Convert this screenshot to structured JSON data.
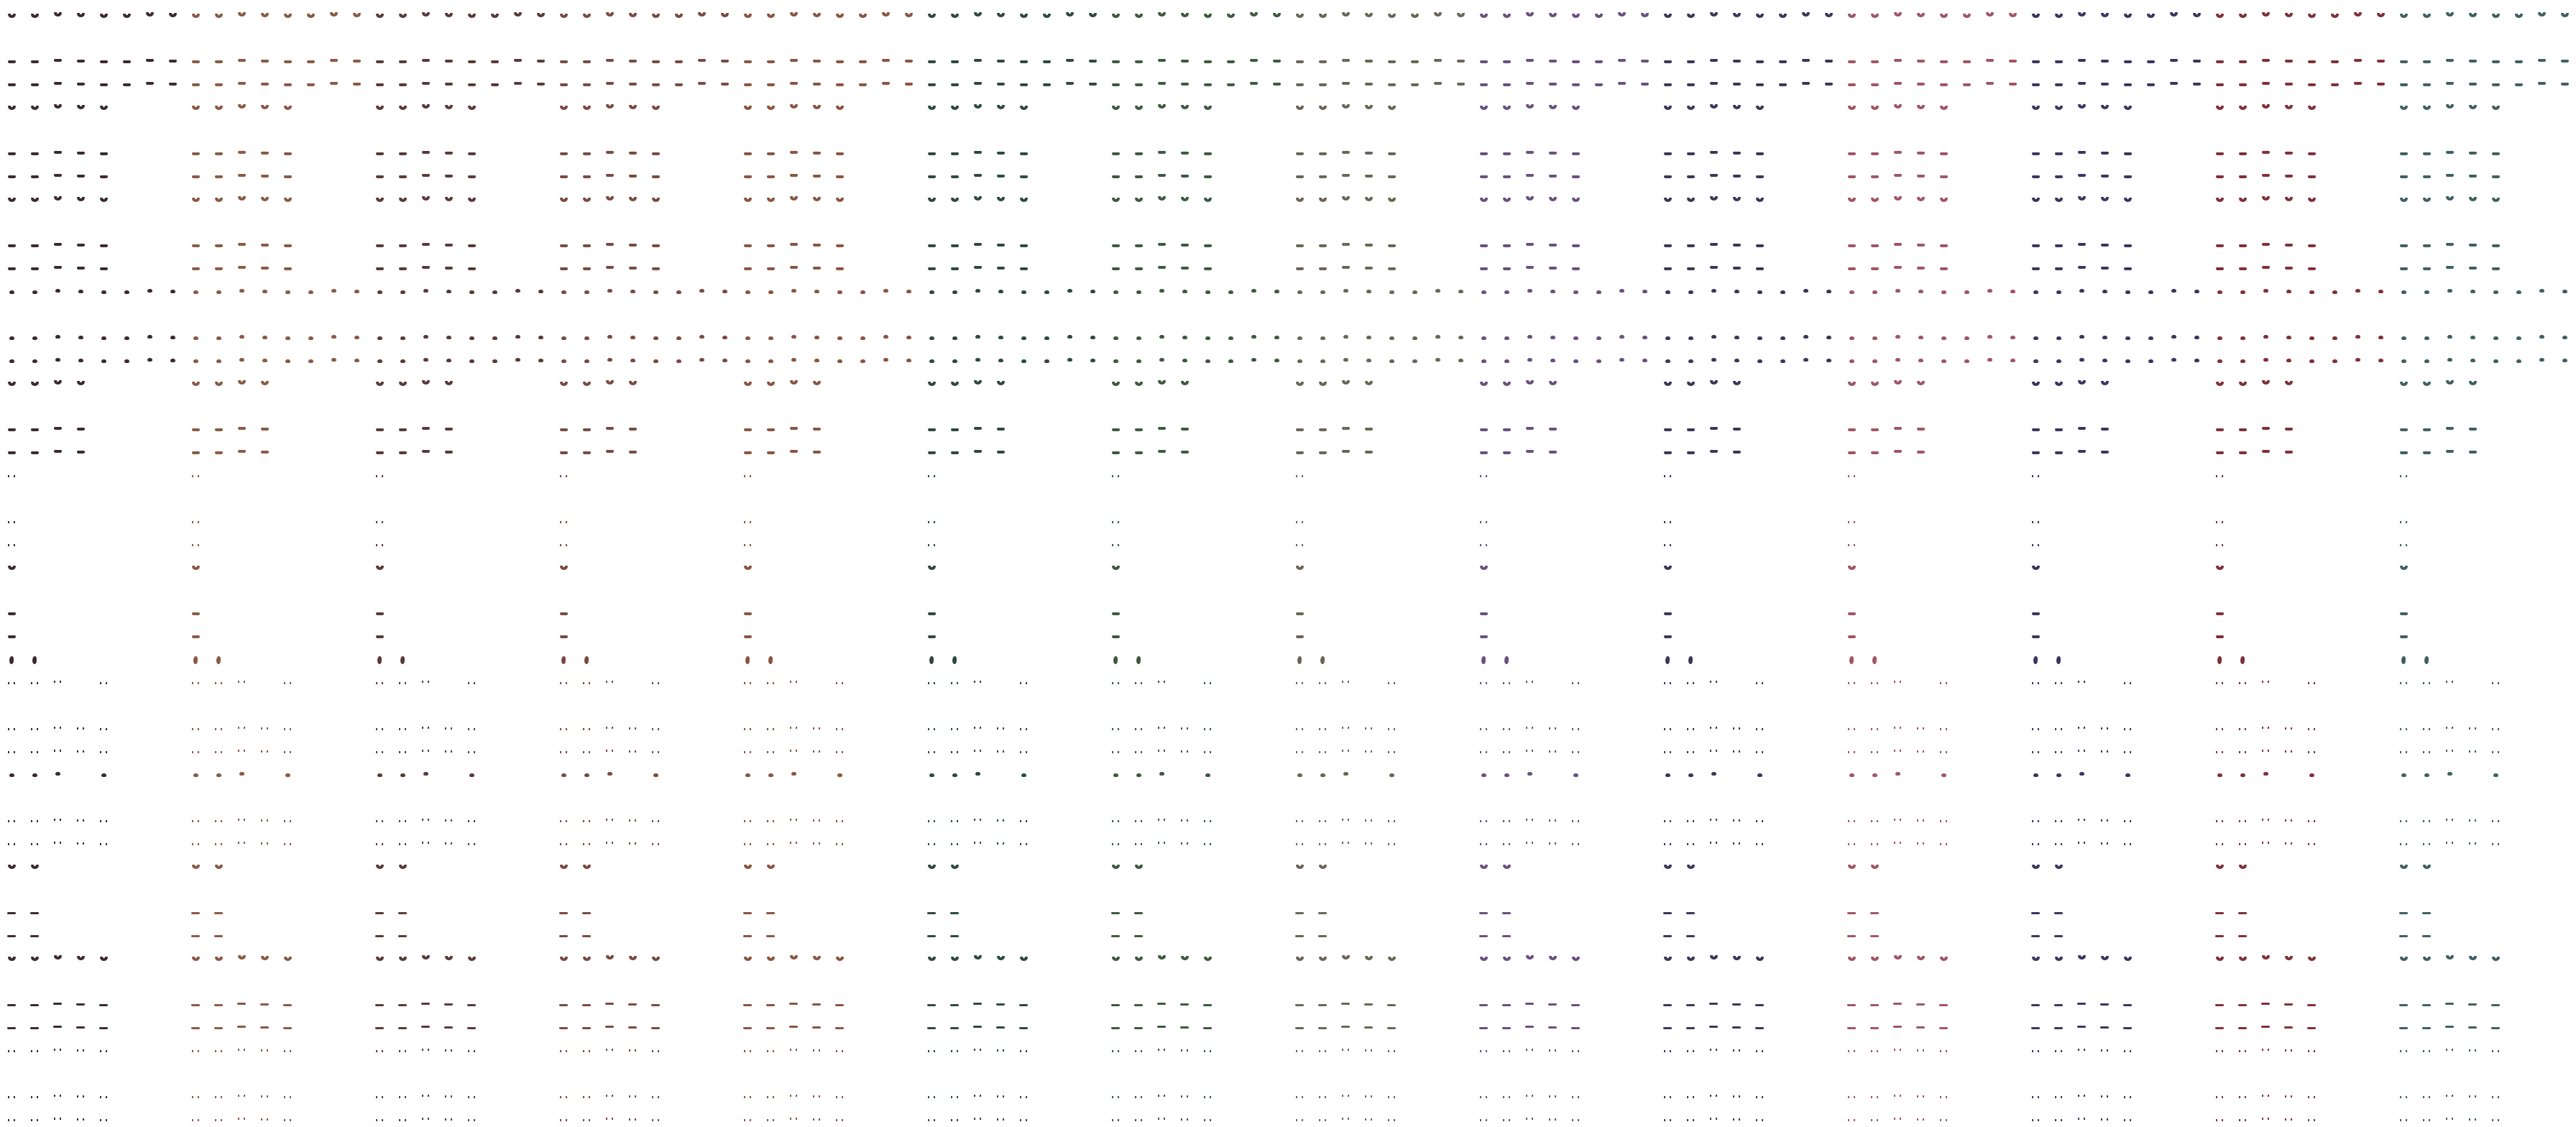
{
  "sheet": {
    "grid_columns_per_block": 8,
    "grid_rows": 49,
    "palette": [
      "#3d2a2e",
      "#8a5a45",
      "#5a3a38",
      "#7a4a40",
      "#8a5540",
      "#2d4a3e",
      "#3d5a3e",
      "#6b6655",
      "#6a5080",
      "#3e3558",
      "#a05565",
      "#3a3560",
      "#803038",
      "#3f6060"
    ],
    "rows": [
      {
        "cols": [
          0,
          1,
          2,
          3,
          4,
          5,
          6,
          7
        ],
        "shape": "bowl"
      },
      {
        "cols": [],
        "shape": ""
      },
      {
        "cols": [
          0,
          1,
          2,
          3,
          4,
          5,
          6,
          7
        ],
        "shape": "stache"
      },
      {
        "cols": [
          0,
          1,
          2,
          3,
          4,
          5,
          6,
          7
        ],
        "shape": "stache"
      },
      {
        "cols": [
          0,
          1,
          2,
          3,
          4
        ],
        "shape": "bowl"
      },
      {
        "cols": [],
        "shape": ""
      },
      {
        "cols": [
          0,
          1,
          2,
          3,
          4
        ],
        "shape": "stache"
      },
      {
        "cols": [
          0,
          1,
          2,
          3,
          4
        ],
        "shape": "stache"
      },
      {
        "cols": [
          0,
          1,
          2,
          3,
          4
        ],
        "shape": "bowl"
      },
      {
        "cols": [],
        "shape": ""
      },
      {
        "cols": [
          0,
          1,
          2,
          3,
          4
        ],
        "shape": "stache"
      },
      {
        "cols": [
          0,
          1,
          2,
          3,
          4
        ],
        "shape": "stache"
      },
      {
        "cols": [
          0,
          1,
          2,
          3,
          4,
          5,
          6,
          7
        ],
        "shape": "dot"
      },
      {
        "cols": [],
        "shape": ""
      },
      {
        "cols": [
          0,
          1,
          2,
          3,
          4,
          5,
          6,
          7
        ],
        "shape": "dot"
      },
      {
        "cols": [
          0,
          1,
          2,
          3,
          4,
          5,
          6,
          7
        ],
        "shape": "dot"
      },
      {
        "cols": [
          0,
          1,
          2,
          3
        ],
        "shape": "bowl"
      },
      {
        "cols": [],
        "shape": ""
      },
      {
        "cols": [
          0,
          1,
          2,
          3
        ],
        "shape": "stache"
      },
      {
        "cols": [
          0,
          1,
          2,
          3
        ],
        "shape": "stache"
      },
      {
        "cols": [
          0
        ],
        "shape": "sparse"
      },
      {
        "cols": [],
        "shape": ""
      },
      {
        "cols": [
          0
        ],
        "shape": "sparse"
      },
      {
        "cols": [
          0
        ],
        "shape": "sparse"
      },
      {
        "cols": [
          0
        ],
        "shape": "bowl"
      },
      {
        "cols": [],
        "shape": ""
      },
      {
        "cols": [
          0
        ],
        "shape": "stache"
      },
      {
        "cols": [
          0
        ],
        "shape": "stache"
      },
      {
        "cols": [
          0,
          1
        ],
        "shape": "drop"
      },
      {
        "cols": [
          0,
          1,
          2,
          4
        ],
        "shape": "sparse"
      },
      {
        "cols": [],
        "shape": ""
      },
      {
        "cols": [
          0,
          1,
          2,
          3,
          4
        ],
        "shape": "sparse"
      },
      {
        "cols": [
          0,
          1,
          2,
          3,
          4
        ],
        "shape": "sparse"
      },
      {
        "cols": [
          0,
          1,
          2,
          4
        ],
        "shape": "dot"
      },
      {
        "cols": [],
        "shape": ""
      },
      {
        "cols": [
          0,
          1,
          2,
          3,
          4
        ],
        "shape": "sparse"
      },
      {
        "cols": [
          0,
          1,
          2,
          3,
          4
        ],
        "shape": "sparse"
      },
      {
        "cols": [
          0,
          1
        ],
        "shape": "bowl"
      },
      {
        "cols": [],
        "shape": ""
      },
      {
        "cols": [
          0,
          1
        ],
        "shape": "long"
      },
      {
        "cols": [
          0,
          1
        ],
        "shape": "long"
      },
      {
        "cols": [
          0,
          1,
          2,
          3,
          4
        ],
        "shape": "bowl"
      },
      {
        "cols": [],
        "shape": ""
      },
      {
        "cols": [
          0,
          1,
          2,
          3,
          4
        ],
        "shape": "long"
      },
      {
        "cols": [
          0,
          1,
          2,
          3,
          4
        ],
        "shape": "long"
      },
      {
        "cols": [
          0,
          1,
          2,
          3,
          4
        ],
        "shape": "sparse"
      },
      {
        "cols": [],
        "shape": ""
      },
      {
        "cols": [
          0,
          1,
          2,
          3,
          4
        ],
        "shape": "sparse"
      },
      {
        "cols": [
          0,
          1,
          2,
          3,
          4
        ],
        "shape": "sparse"
      }
    ]
  }
}
